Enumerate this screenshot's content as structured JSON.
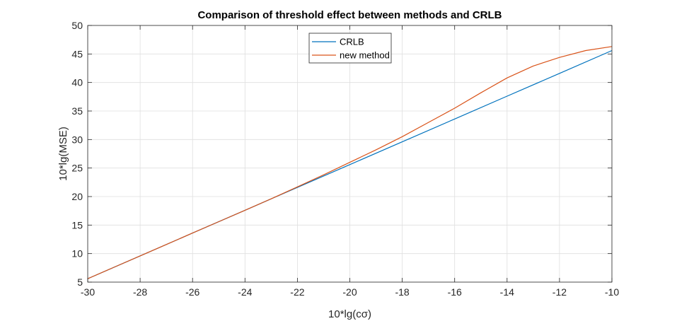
{
  "chart_data": {
    "type": "line",
    "title": "Comparison of threshold effect between methods and CRLB",
    "xlabel": "10*lg(cσ)",
    "ylabel": "10*lg(MSE)",
    "xlim": [
      -30,
      -10
    ],
    "ylim": [
      5,
      50
    ],
    "xticks": [
      -30,
      -28,
      -26,
      -24,
      -22,
      -20,
      -18,
      -16,
      -14,
      -12,
      -10
    ],
    "yticks": [
      5,
      10,
      15,
      20,
      25,
      30,
      35,
      40,
      45,
      50
    ],
    "grid": true,
    "legend_position": "top-center",
    "series": [
      {
        "name": "CRLB",
        "color": "#0072BD",
        "x": [
          -30,
          -28,
          -26,
          -24,
          -22,
          -20,
          -18,
          -16,
          -14,
          -12,
          -10
        ],
        "y": [
          5.6,
          9.6,
          13.6,
          17.6,
          21.6,
          25.6,
          29.6,
          33.6,
          37.6,
          41.6,
          45.6
        ]
      },
      {
        "name": "new method",
        "color": "#D95319",
        "x": [
          -30,
          -29,
          -28,
          -27,
          -26,
          -25,
          -24,
          -23,
          -22,
          -21,
          -20,
          -19,
          -18,
          -17,
          -16,
          -15,
          -14,
          -13,
          -12,
          -11,
          -10
        ],
        "y": [
          5.6,
          7.6,
          9.6,
          11.6,
          13.6,
          15.6,
          17.6,
          19.6,
          21.7,
          23.8,
          26.0,
          28.2,
          30.5,
          33.0,
          35.5,
          38.2,
          40.8,
          42.9,
          44.4,
          45.6,
          46.3
        ]
      }
    ]
  }
}
